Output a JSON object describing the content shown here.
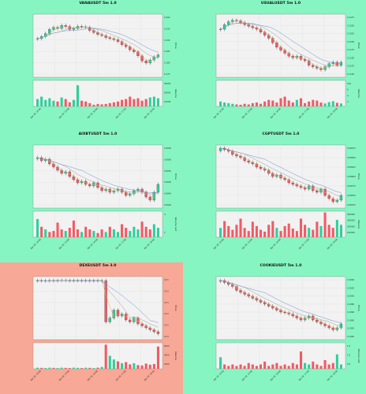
{
  "page": {
    "background": "#86f5c2",
    "highlight_background": "#f8a896"
  },
  "colors": {
    "up": "#2bd19a",
    "down": "#f25a64",
    "wick": "#333333",
    "ma1": "#d9b25c",
    "ma2": "#9a9a9a",
    "ma3": "#6a8fc9",
    "plot_bg": "#f2f2f2"
  },
  "charts": [
    {
      "title": "VANAUSDT 5m 1.0",
      "highlighted": false,
      "price_label": "Price",
      "volume_label": "Volume",
      "price_ticks": [
        "0.200",
        "0.195",
        "0.190",
        "0.185",
        "0.180",
        "0.175"
      ],
      "volume_ticks": [
        "30000",
        "20000",
        "10000"
      ],
      "x_ticks": [
        "Apr 20, 14:00",
        "Apr 20, 15:00",
        "Apr 20, 16:00",
        "Apr 20, 17:00",
        "Apr 20, 18:00"
      ],
      "price_range": [
        0.171,
        0.202
      ],
      "volume_range": [
        0,
        32000
      ],
      "chart_data": {
        "type": "candlestick",
        "close": [
          0.19,
          0.191,
          0.1925,
          0.1945,
          0.1955,
          0.195,
          0.1965,
          0.196,
          0.1945,
          0.195,
          0.196,
          0.1958,
          0.1955,
          0.194,
          0.193,
          0.192,
          0.1915,
          0.1905,
          0.19,
          0.1895,
          0.1885,
          0.187,
          0.186,
          0.1845,
          0.1835,
          0.1815,
          0.179,
          0.178,
          0.1795,
          0.181,
          0.182
        ],
        "volume": [
          9000,
          12000,
          8000,
          10000,
          7000,
          6000,
          11000,
          9000,
          5000,
          8000,
          26000,
          7000,
          6000,
          4000,
          2000,
          3000,
          2500,
          3000,
          4000,
          5000,
          6000,
          8000,
          9000,
          12000,
          9000,
          10000,
          7000,
          9000,
          11000,
          12000,
          10000
        ]
      }
    },
    {
      "title": "USUALUSDT 5m 1.0",
      "highlighted": false,
      "price_label": "Price",
      "volume_label": "Volume",
      "price_ticks": [
        "0.1275",
        "0.1250",
        "0.1225",
        "0.1200",
        "0.1175",
        "0.1150",
        "0.1125",
        "0.1100"
      ],
      "volume_ticks": [
        "1e6",
        "6",
        "4",
        "2"
      ],
      "x_ticks": [
        "Apr 20, 14:00",
        "Apr 20, 15:00",
        "Apr 20, 16:00",
        "Apr 20, 17:00",
        "Apr 20, 18:00"
      ],
      "price_range": [
        0.108,
        0.129
      ],
      "volume_range": [
        0,
        8
      ],
      "chart_data": {
        "type": "candlestick",
        "close": [
          0.124,
          0.1255,
          0.1265,
          0.127,
          0.1268,
          0.1262,
          0.1255,
          0.125,
          0.1245,
          0.124,
          0.123,
          0.122,
          0.121,
          0.1195,
          0.118,
          0.117,
          0.116,
          0.115,
          0.1145,
          0.115,
          0.114,
          0.1135,
          0.112,
          0.1115,
          0.111,
          0.1105,
          0.1115,
          0.1125,
          0.113,
          0.112,
          0.113
        ],
        "volume": [
          1.5,
          1.2,
          1.0,
          0.8,
          0.6,
          0.5,
          0.8,
          0.6,
          1.0,
          1.2,
          0.8,
          1.5,
          2.0,
          1.8,
          1.2,
          2.5,
          3.0,
          1.8,
          1.2,
          2.0,
          2.5,
          1.0,
          1.5,
          2.0,
          1.8,
          1.2,
          0.9,
          1.3,
          1.6,
          1.1,
          0.9
        ]
      }
    },
    {
      "title": "AIXBTUSDT 5m 1.0",
      "highlighted": false,
      "price_label": "Price",
      "volume_label": "Volume 1e7",
      "price_ticks": [
        "0.0665",
        "0.0660",
        "0.0655",
        "0.0650",
        "0.0645",
        "0.0640"
      ],
      "volume_ticks": [
        "4",
        "2"
      ],
      "x_ticks": [
        "Apr 20, 14:00",
        "Apr 20, 15:00",
        "Apr 20, 16:00",
        "Apr 20, 17:00",
        "Apr 20, 18:00"
      ],
      "price_range": [
        0.063,
        0.067
      ],
      "volume_range": [
        0,
        5
      ],
      "chart_data": {
        "type": "candlestick",
        "close": [
          0.0662,
          0.066,
          0.0661,
          0.0658,
          0.0656,
          0.0654,
          0.0652,
          0.0653,
          0.065,
          0.0648,
          0.0646,
          0.0647,
          0.0645,
          0.0644,
          0.0646,
          0.0643,
          0.0641,
          0.0642,
          0.064,
          0.0641,
          0.0642,
          0.064,
          0.0638,
          0.0639,
          0.0641,
          0.0642,
          0.064,
          0.0637,
          0.0635,
          0.064,
          0.0645
        ],
        "volume": [
          3.5,
          2.0,
          1.5,
          1.0,
          1.2,
          2.8,
          1.5,
          1.2,
          1.8,
          3.2,
          1.5,
          1.0,
          2.0,
          1.5,
          1.2,
          0.8,
          1.5,
          1.0,
          2.0,
          1.5,
          1.0,
          2.5,
          1.8,
          1.2,
          2.0,
          1.5,
          3.0,
          2.0,
          1.5,
          2.5,
          1.8
        ]
      }
    },
    {
      "title": "CGPTUSDT 5m 1.0",
      "highlighted": false,
      "price_label": "Price",
      "volume_label": "Volume",
      "price_ticks": [
        "0.08675",
        "0.08650",
        "0.08625",
        "0.08600",
        "0.08575",
        "0.08550",
        "0.08525"
      ],
      "volume_ticks": [
        "400000",
        "300000",
        "200000",
        "100000"
      ],
      "x_ticks": [
        "Apr 20, 14:00",
        "Apr 20, 15:00",
        "Apr 20, 16:00",
        "Apr 20, 17:00",
        "Apr 20, 18:00"
      ],
      "price_range": [
        0.085,
        0.087
      ],
      "volume_range": [
        0,
        420000
      ],
      "chart_data": {
        "type": "candlestick",
        "close": [
          0.0869,
          0.08685,
          0.0868,
          0.0867,
          0.08665,
          0.0866,
          0.0865,
          0.08645,
          0.0864,
          0.0863,
          0.08625,
          0.0862,
          0.0861,
          0.086,
          0.08605,
          0.08595,
          0.0859,
          0.0858,
          0.08575,
          0.0857,
          0.08565,
          0.0856,
          0.0857,
          0.08555,
          0.0855,
          0.0856,
          0.0854,
          0.0853,
          0.0852,
          0.08525,
          0.0854
        ],
        "volume": [
          150000,
          260000,
          180000,
          120000,
          200000,
          300000,
          150000,
          100000,
          250000,
          180000,
          120000,
          90000,
          200000,
          260000,
          150000,
          100000,
          180000,
          220000,
          140000,
          100000,
          300000,
          200000,
          150000,
          120000,
          250000,
          180000,
          400000,
          200000,
          150000,
          280000,
          200000
        ]
      }
    },
    {
      "title": "DEXEUSDT 5m 3.0",
      "highlighted": true,
      "price_label": "Price",
      "volume_label": "Volume",
      "price_ticks": [
        "16.5",
        "16.0",
        "15.5",
        "15.0",
        "14.5",
        "14.0"
      ],
      "volume_ticks": [
        "6000",
        "4000",
        "2000"
      ],
      "x_ticks": [
        "Apr 20, 14:00",
        "Apr 20, 15:00",
        "Apr 20, 16:00",
        "Apr 20, 17:00",
        "Apr 20, 18:00"
      ],
      "price_range": [
        13.7,
        16.9
      ],
      "volume_range": [
        0,
        7000
      ],
      "chart_data": {
        "type": "candlestick",
        "close": [
          16.7,
          16.68,
          16.69,
          16.7,
          16.69,
          16.7,
          16.71,
          16.7,
          16.69,
          16.7,
          16.7,
          16.69,
          16.7,
          16.68,
          16.7,
          16.69,
          16.7,
          14.6,
          14.8,
          15.2,
          14.9,
          15.0,
          14.7,
          14.6,
          14.8,
          14.5,
          14.4,
          14.3,
          14.2,
          14.1,
          14.0
        ],
        "volume": [
          300,
          250,
          200,
          300,
          250,
          200,
          300,
          250,
          200,
          300,
          250,
          200,
          300,
          250,
          200,
          300,
          500,
          6500,
          3500,
          2500,
          2000,
          1500,
          1800,
          1200,
          1500,
          1000,
          900,
          1400,
          1100,
          1300,
          6000
        ]
      }
    },
    {
      "title": "COOKIEUSDT 5m 1.0",
      "highlighted": false,
      "price_label": "Price",
      "volume_label": "Volume 1e6",
      "price_ticks": [
        "0.2040",
        "0.2020",
        "0.2000",
        "0.1980",
        "0.1960",
        "0.1940",
        "0.1920",
        "0.1900"
      ],
      "volume_ticks": [
        "1.5",
        "1.0",
        "0.5"
      ],
      "x_ticks": [
        "Apr 20, 14:00",
        "Apr 20, 15:00",
        "Apr 20, 16:00",
        "Apr 20, 17:00",
        "Apr 20, 18:00"
      ],
      "price_range": [
        0.189,
        0.205
      ],
      "volume_range": [
        0,
        1.8
      ],
      "chart_data": {
        "type": "candlestick",
        "close": [
          0.204,
          0.2035,
          0.203,
          0.2025,
          0.2015,
          0.201,
          0.2005,
          0.2,
          0.1995,
          0.199,
          0.1985,
          0.198,
          0.1975,
          0.197,
          0.1965,
          0.196,
          0.1958,
          0.1955,
          0.195,
          0.1945,
          0.194,
          0.1945,
          0.195,
          0.194,
          0.1935,
          0.193,
          0.1925,
          0.192,
          0.1915,
          0.192,
          0.193
        ],
        "volume": [
          0.8,
          0.3,
          0.2,
          0.3,
          0.2,
          0.3,
          0.2,
          0.4,
          0.3,
          0.2,
          0.3,
          0.5,
          0.2,
          0.3,
          0.4,
          0.2,
          0.3,
          0.2,
          0.4,
          0.3,
          1.2,
          0.4,
          0.3,
          0.5,
          0.3,
          0.2,
          0.6,
          0.3,
          0.4,
          1.0,
          0.3
        ]
      }
    }
  ]
}
